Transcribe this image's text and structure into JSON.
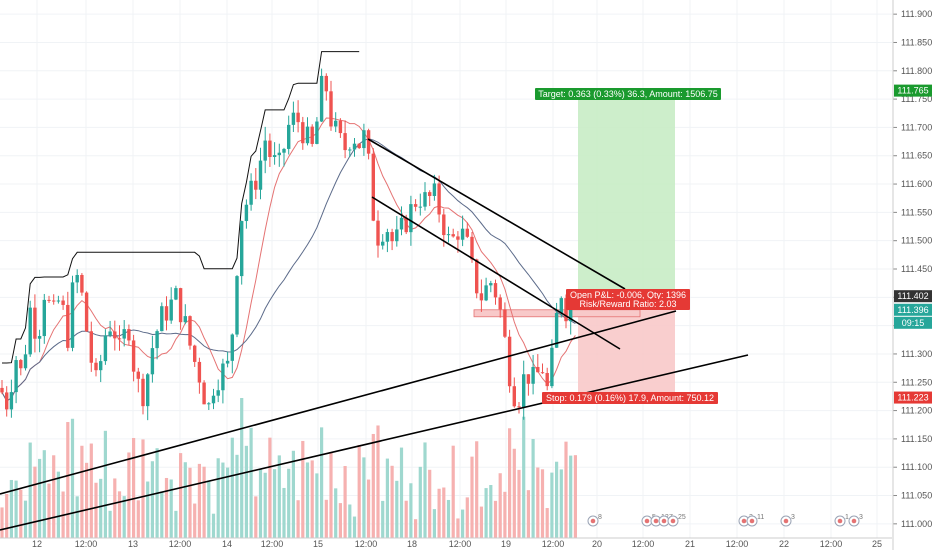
{
  "chart_data": {
    "type": "candlestick",
    "symbol_price_scale": "USDJPY-like",
    "y_axis": {
      "min": 110.975,
      "max": 111.925,
      "ticks": [
        "111.000",
        "111.050",
        "111.100",
        "111.150",
        "111.200",
        "111.250",
        "111.300",
        "111.350",
        "111.400",
        "111.450",
        "111.500",
        "111.550",
        "111.600",
        "111.650",
        "111.700",
        "111.750",
        "111.800",
        "111.850",
        "111.900"
      ]
    },
    "x_ticks": [
      "12",
      "12:00",
      "13",
      "12:00",
      "14",
      "12:00",
      "15",
      "12:00",
      "18",
      "12:00",
      "19",
      "12:00",
      "20",
      "12:00",
      "21",
      "12:00",
      "22",
      "12:00",
      "25"
    ],
    "price_tags": [
      {
        "label": "111.765",
        "value": 111.765,
        "color": "#1a9a2e",
        "text_color": "#ffffff"
      },
      {
        "label": "111.402",
        "value": 111.402,
        "color": "#333333",
        "text_color": "#ffffff"
      },
      {
        "label": "111.396",
        "value": 111.378,
        "color": "#26a69a",
        "text_color": "#ffffff"
      },
      {
        "label": "09:15",
        "value": 111.355,
        "color": "#26a69a",
        "text_color": "#ffffff"
      },
      {
        "label": "111.223",
        "value": 111.223,
        "color": "#e53935",
        "text_color": "#ffffff"
      }
    ],
    "annotations": {
      "target": "Target: 0.363 (0.33%) 36.3, Amount: 1506.75",
      "open_pl": "Open P&L: -0.006, Qty: 1396",
      "risk_reward": "Risk/Reward Ratio: 2.03",
      "stop": "Stop: 0.179 (0.16%) 17.9, Amount: 750.12"
    },
    "position": {
      "entry": 111.402,
      "target": 111.765,
      "stop": 111.223
    },
    "event_markers": [
      "8",
      "5",
      "12",
      "7",
      "25",
      "3",
      "11",
      "3",
      "1",
      "3"
    ],
    "colors": {
      "up": "#26a69a",
      "down": "#ef5350",
      "ma_fast": "#e57373",
      "ma_slow": "#5c6b8a",
      "band_upper": "#111111",
      "trendline": "#000000",
      "target_zone": "#c8ecc5",
      "stop_zone": "#f8c9c9"
    }
  }
}
